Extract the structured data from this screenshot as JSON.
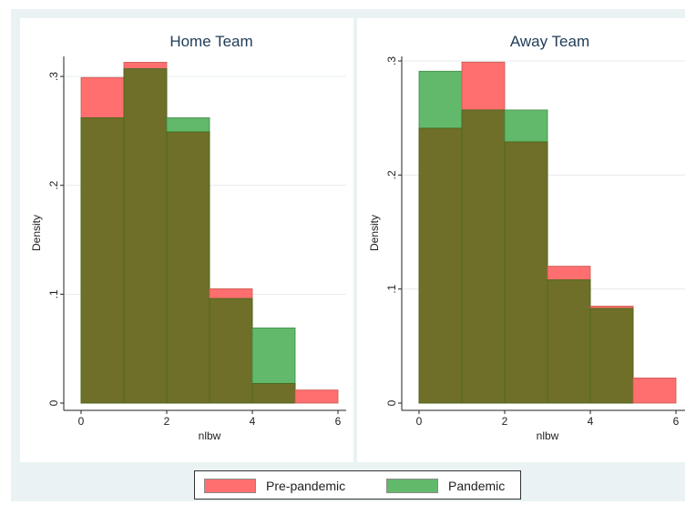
{
  "colors": {
    "outer_bg": "#eaf2f3",
    "plot_bg": "#ffffff",
    "grid": "#e6ecee",
    "pre_pandemic": "#ff6f6f",
    "pandemic": "#62b96b",
    "overlap": "#6f6f2a",
    "edge": "#4d6a1c"
  },
  "legend": {
    "pre_label": "Pre-pandemic",
    "pan_label": "Pandemic"
  },
  "chart_data": [
    {
      "type": "bar",
      "title": "Home Team",
      "xlabel": "nlbw",
      "ylabel": "Density",
      "xlim": [
        0,
        6
      ],
      "ylim": [
        0,
        0.3
      ],
      "xticks": [
        "0",
        "2",
        "4",
        "6"
      ],
      "yticks": [
        "0",
        ".1",
        ".2",
        ".3"
      ],
      "bin_edges": [
        0,
        1,
        2,
        3,
        4,
        5,
        6
      ],
      "series": [
        {
          "name": "Pre-pandemic",
          "values": [
            0.299,
            0.313,
            0.249,
            0.105,
            0.018,
            0.012
          ]
        },
        {
          "name": "Pandemic",
          "values": [
            0.262,
            0.307,
            0.262,
            0.096,
            0.069,
            0.0
          ]
        }
      ]
    },
    {
      "type": "bar",
      "title": "Away Team",
      "xlabel": "nlbw",
      "ylabel": "Density",
      "xlim": [
        0,
        6
      ],
      "ylim": [
        0,
        0.3
      ],
      "xticks": [
        "0",
        "2",
        "4",
        "6"
      ],
      "yticks": [
        "0",
        ".1",
        ".2",
        ".3"
      ],
      "bin_edges": [
        0,
        1,
        2,
        3,
        4,
        5,
        6
      ],
      "series": [
        {
          "name": "Pre-pandemic",
          "values": [
            0.241,
            0.299,
            0.229,
            0.12,
            0.085,
            0.022
          ]
        },
        {
          "name": "Pandemic",
          "values": [
            0.291,
            0.257,
            0.257,
            0.108,
            0.083,
            0.0
          ]
        }
      ]
    }
  ]
}
